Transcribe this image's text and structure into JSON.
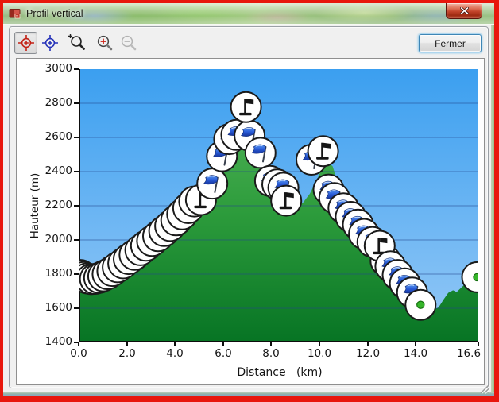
{
  "window": {
    "title": "Profil vertical",
    "close_button": "close-window",
    "border_color": "#e8170d"
  },
  "toolbar": {
    "buttons": [
      {
        "icon": "red-reticle-icon",
        "selected": true
      },
      {
        "icon": "blue-reticle-icon",
        "selected": false
      },
      {
        "icon": "zoom-selection-icon",
        "selected": false
      },
      {
        "icon": "zoom-in-icon",
        "selected": false
      },
      {
        "icon": "zoom-out-icon",
        "selected": false,
        "disabled": true
      }
    ],
    "close_label": "Fermer"
  },
  "chart_data": {
    "type": "area",
    "title": "",
    "xlabel": "Distance   (km)",
    "ylabel": "Hauteur (m)",
    "xlim": [
      0,
      16.6
    ],
    "ylim": [
      1400,
      3000
    ],
    "x_ticks": [
      0,
      2,
      4,
      6,
      8,
      10,
      12,
      14,
      16.6
    ],
    "x_tick_labels": [
      "0.0",
      "2.0",
      "4.0",
      "6.0",
      "8.0",
      "10.0",
      "12.0",
      "14.0",
      "16.6"
    ],
    "y_ticks": [
      1400,
      1600,
      1800,
      2000,
      2200,
      2400,
      2600,
      2800,
      3000
    ],
    "y_tick_labels": [
      "1400",
      "1600",
      "1800",
      "2000",
      "2200",
      "2400",
      "2600",
      "2800",
      "3000"
    ],
    "grid": true,
    "colors": {
      "sky_top": "#3b9ff0",
      "sky_bottom": "#96c9f6",
      "terrain_top": "#52b358",
      "terrain_mid": "#2d9c3c",
      "terrain_bottom": "#077424",
      "gridline": "rgba(35,70,140,0.55)",
      "axis": "#0d0d0d",
      "marker_fill": "#ffffff",
      "marker_stroke": "#1a1a1a",
      "blue_flag": "#2a5cd8",
      "black_flag": "#161616",
      "green_dot": "#35b52a"
    },
    "profile": [
      [
        0,
        1725
      ],
      [
        0.4,
        1718
      ],
      [
        0.8,
        1722
      ],
      [
        1.2,
        1732
      ],
      [
        1.6,
        1762
      ],
      [
        2.0,
        1800
      ],
      [
        2.4,
        1845
      ],
      [
        2.8,
        1892
      ],
      [
        3.2,
        1940
      ],
      [
        3.6,
        1995
      ],
      [
        4.0,
        2060
      ],
      [
        4.4,
        2125
      ],
      [
        4.8,
        2190
      ],
      [
        5.2,
        2245
      ],
      [
        5.6,
        2305
      ],
      [
        5.9,
        2370
      ],
      [
        6.2,
        2465
      ],
      [
        6.5,
        2560
      ],
      [
        6.75,
        2640
      ],
      [
        6.95,
        2695
      ],
      [
        7.1,
        2680
      ],
      [
        7.3,
        2570
      ],
      [
        7.6,
        2460
      ],
      [
        7.9,
        2370
      ],
      [
        8.3,
        2280
      ],
      [
        8.7,
        2215
      ],
      [
        9.0,
        2195
      ],
      [
        9.3,
        2215
      ],
      [
        9.6,
        2270
      ],
      [
        9.9,
        2355
      ],
      [
        10.15,
        2432
      ],
      [
        10.35,
        2458
      ],
      [
        10.55,
        2430
      ],
      [
        10.75,
        2340
      ],
      [
        11.0,
        2245
      ],
      [
        11.3,
        2150
      ],
      [
        11.7,
        2060
      ],
      [
        12.1,
        1985
      ],
      [
        12.5,
        1910
      ],
      [
        12.9,
        1835
      ],
      [
        13.3,
        1775
      ],
      [
        13.7,
        1715
      ],
      [
        14.1,
        1655
      ],
      [
        14.45,
        1615
      ],
      [
        14.75,
        1592
      ],
      [
        14.95,
        1605
      ],
      [
        15.15,
        1650
      ],
      [
        15.35,
        1690
      ],
      [
        15.55,
        1705
      ],
      [
        15.7,
        1695
      ],
      [
        15.85,
        1715
      ],
      [
        16.0,
        1735
      ],
      [
        16.1,
        1722
      ],
      [
        16.25,
        1745
      ],
      [
        16.4,
        1738
      ],
      [
        16.55,
        1750
      ],
      [
        16.6,
        1750
      ]
    ],
    "markers": [
      {
        "km": 0.08,
        "m": 1795,
        "icon": "plain"
      },
      {
        "km": 0.22,
        "m": 1783,
        "icon": "plain"
      },
      {
        "km": 0.36,
        "m": 1775,
        "icon": "plain"
      },
      {
        "km": 0.52,
        "m": 1770,
        "icon": "plain"
      },
      {
        "km": 0.68,
        "m": 1772,
        "icon": "plain"
      },
      {
        "km": 0.85,
        "m": 1778,
        "icon": "plain"
      },
      {
        "km": 1.02,
        "m": 1788,
        "icon": "plain"
      },
      {
        "km": 1.2,
        "m": 1800,
        "icon": "plain"
      },
      {
        "km": 1.4,
        "m": 1818,
        "icon": "plain"
      },
      {
        "km": 1.62,
        "m": 1840,
        "icon": "plain"
      },
      {
        "km": 1.85,
        "m": 1863,
        "icon": "plain"
      },
      {
        "km": 2.08,
        "m": 1888,
        "icon": "plain"
      },
      {
        "km": 2.32,
        "m": 1913,
        "icon": "plain"
      },
      {
        "km": 2.56,
        "m": 1940,
        "icon": "plain"
      },
      {
        "km": 2.8,
        "m": 1966,
        "icon": "plain"
      },
      {
        "km": 3.05,
        "m": 1994,
        "icon": "plain"
      },
      {
        "km": 3.3,
        "m": 2022,
        "icon": "plain"
      },
      {
        "km": 3.55,
        "m": 2052,
        "icon": "plain"
      },
      {
        "km": 3.8,
        "m": 2082,
        "icon": "plain"
      },
      {
        "km": 4.05,
        "m": 2115,
        "icon": "plain"
      },
      {
        "km": 4.3,
        "m": 2150,
        "icon": "plain"
      },
      {
        "km": 4.55,
        "m": 2186,
        "icon": "plain"
      },
      {
        "km": 4.8,
        "m": 2225,
        "icon": "plain"
      },
      {
        "km": 5.08,
        "m": 2235,
        "icon": "black-flag"
      },
      {
        "km": 5.55,
        "m": 2330,
        "icon": "blue-flag"
      },
      {
        "km": 5.95,
        "m": 2490,
        "icon": "blue-flag"
      },
      {
        "km": 6.25,
        "m": 2590,
        "icon": "blue-flag"
      },
      {
        "km": 6.55,
        "m": 2615,
        "icon": "blue-flag"
      },
      {
        "km": 7.1,
        "m": 2610,
        "icon": "blue-flag"
      },
      {
        "km": 6.95,
        "m": 2778,
        "icon": "black-flag"
      },
      {
        "km": 7.55,
        "m": 2510,
        "icon": "blue-flag"
      },
      {
        "km": 7.95,
        "m": 2345,
        "icon": "blue-flag"
      },
      {
        "km": 8.25,
        "m": 2325,
        "icon": "blue-flag"
      },
      {
        "km": 8.5,
        "m": 2305,
        "icon": "blue-flag"
      },
      {
        "km": 8.62,
        "m": 2230,
        "icon": "black-flag"
      },
      {
        "km": 9.67,
        "m": 2470,
        "icon": "blue-flag"
      },
      {
        "km": 10.15,
        "m": 2520,
        "icon": "black-flag"
      },
      {
        "km": 10.38,
        "m": 2295,
        "icon": "blue-flag"
      },
      {
        "km": 10.62,
        "m": 2245,
        "icon": "blue-flag"
      },
      {
        "km": 11.0,
        "m": 2185,
        "icon": "blue-flag"
      },
      {
        "km": 11.3,
        "m": 2135,
        "icon": "blue-flag"
      },
      {
        "km": 11.6,
        "m": 2090,
        "icon": "blue-flag"
      },
      {
        "km": 11.85,
        "m": 2035,
        "icon": "blue-flag"
      },
      {
        "km": 12.2,
        "m": 1988,
        "icon": "blue-flag"
      },
      {
        "km": 12.75,
        "m": 1878,
        "icon": "blue-flag"
      },
      {
        "km": 12.5,
        "m": 1965,
        "icon": "black-flag"
      },
      {
        "km": 12.95,
        "m": 1845,
        "icon": "blue-flag"
      },
      {
        "km": 13.25,
        "m": 1795,
        "icon": "blue-flag"
      },
      {
        "km": 13.55,
        "m": 1745,
        "icon": "blue-flag"
      },
      {
        "km": 13.85,
        "m": 1692,
        "icon": "blue-flag"
      },
      {
        "km": 14.2,
        "m": 1620,
        "icon": "green-dot"
      },
      {
        "km": 16.55,
        "m": 1782,
        "icon": "green-dot"
      }
    ]
  }
}
